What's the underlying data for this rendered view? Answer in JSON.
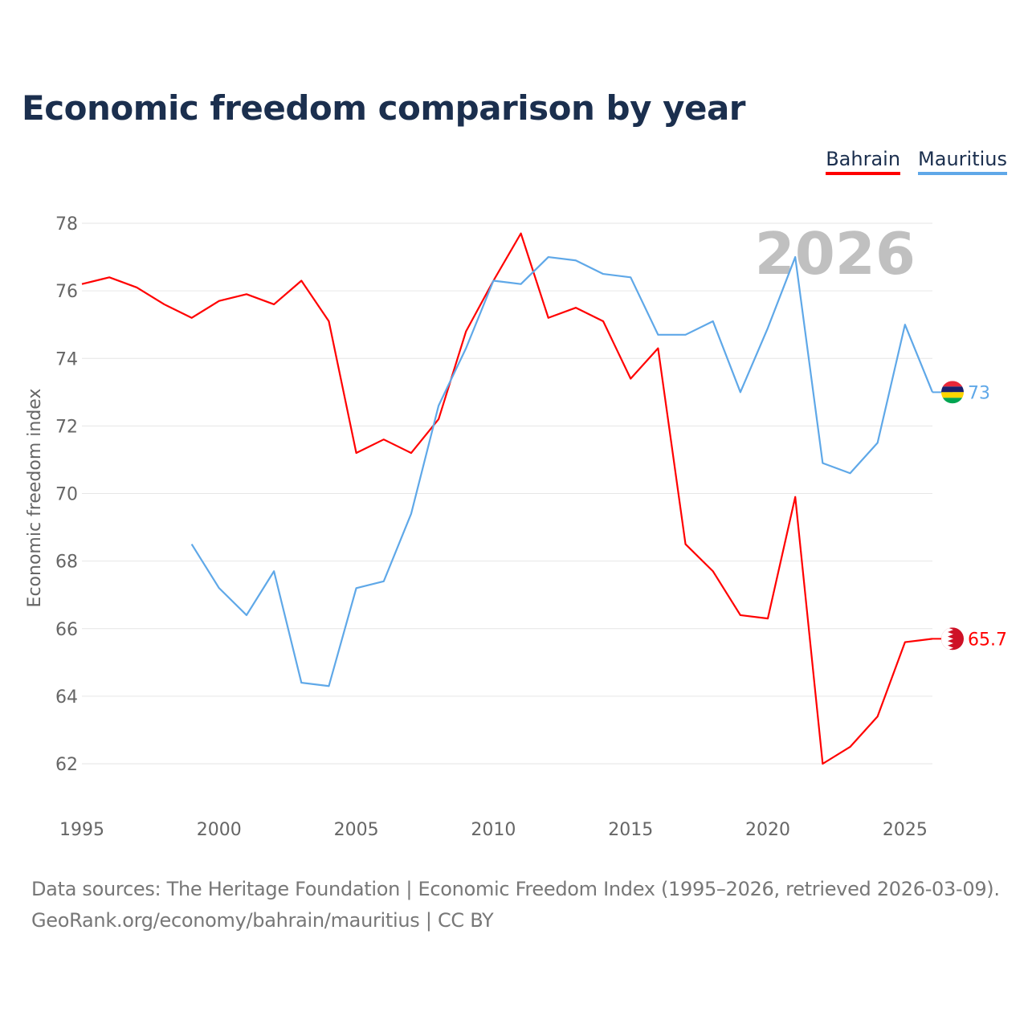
{
  "chart_data": {
    "type": "line",
    "title": "Economic freedom comparison by year",
    "xlabel": "",
    "ylabel": "Economic freedom index",
    "xlim": [
      1995,
      2026
    ],
    "ylim": [
      62,
      78
    ],
    "yticks": [
      62,
      64,
      66,
      68,
      70,
      72,
      74,
      76,
      78
    ],
    "xticks": [
      1995,
      2000,
      2005,
      2010,
      2015,
      2020,
      2025
    ],
    "grid": true,
    "legend_position": "top-right",
    "watermark_year": "2026",
    "series": [
      {
        "name": "Bahrain",
        "color": "#ff0000",
        "end_label": "65.7",
        "x": [
          1995,
          1996,
          1997,
          1998,
          1999,
          2000,
          2001,
          2002,
          2003,
          2004,
          2005,
          2006,
          2007,
          2008,
          2009,
          2010,
          2011,
          2012,
          2013,
          2014,
          2015,
          2016,
          2017,
          2018,
          2019,
          2020,
          2021,
          2022,
          2023,
          2024,
          2025,
          2026
        ],
        "values": [
          76.2,
          76.4,
          76.1,
          75.6,
          75.2,
          75.7,
          75.9,
          75.6,
          76.3,
          75.1,
          71.2,
          71.6,
          71.2,
          72.2,
          74.8,
          76.3,
          77.7,
          75.2,
          75.5,
          75.1,
          73.4,
          74.3,
          68.5,
          67.7,
          66.4,
          66.3,
          69.9,
          62.0,
          62.5,
          63.4,
          65.6,
          65.7
        ]
      },
      {
        "name": "Mauritius",
        "color": "#5fa8e8",
        "end_label": "73",
        "x": [
          1999,
          2000,
          2001,
          2002,
          2003,
          2004,
          2005,
          2006,
          2007,
          2008,
          2009,
          2010,
          2011,
          2012,
          2013,
          2014,
          2015,
          2016,
          2017,
          2018,
          2019,
          2020,
          2021,
          2022,
          2023,
          2024,
          2025,
          2026
        ],
        "values": [
          68.5,
          67.2,
          66.4,
          67.7,
          64.4,
          64.3,
          67.2,
          67.4,
          69.4,
          72.6,
          74.3,
          76.3,
          76.2,
          77.0,
          76.9,
          76.5,
          76.4,
          74.7,
          74.7,
          75.1,
          73.0,
          74.9,
          77.0,
          70.9,
          70.6,
          71.5,
          75.0,
          73.0
        ]
      }
    ]
  },
  "source": {
    "line1": "Data sources: The Heritage Foundation | Economic Freedom Index (1995–2026, retrieved 2026-03-09).",
    "line2": "GeoRank.org/economy/bahrain/mauritius | CC BY"
  }
}
